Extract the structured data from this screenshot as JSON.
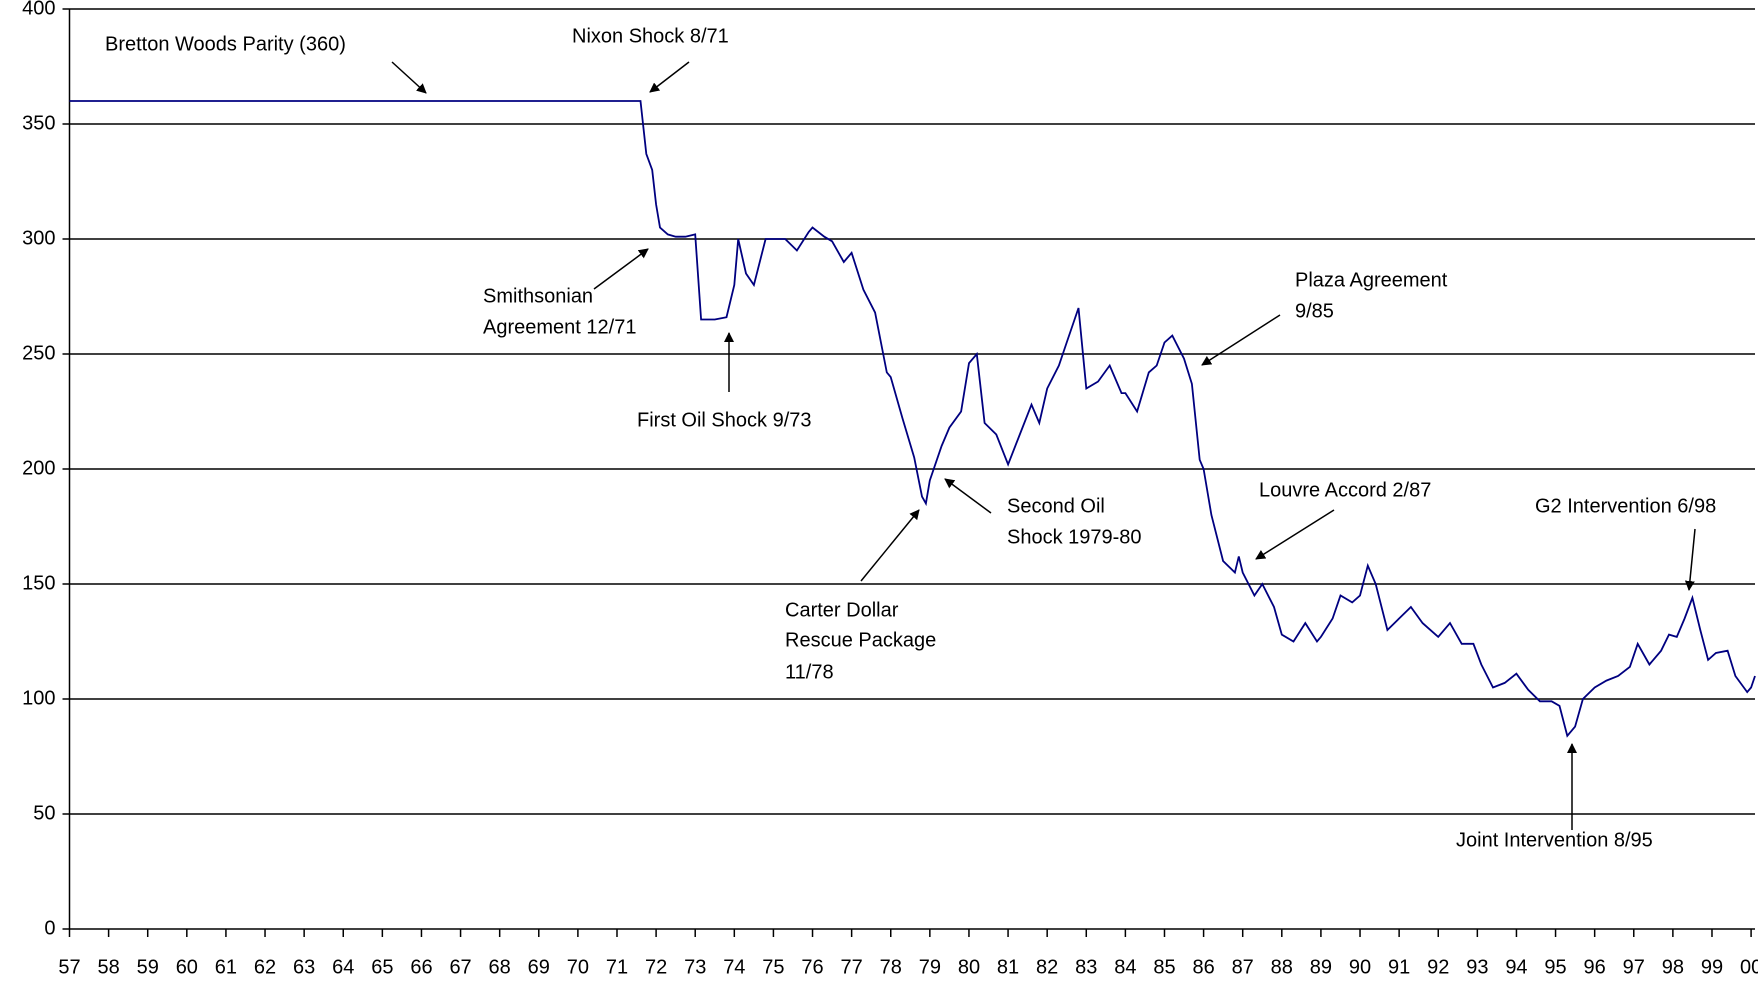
{
  "chart_data": {
    "type": "line",
    "series": [
      {
        "color": "#000080",
        "x": [
          1957,
          1971.6,
          1971.75,
          1971.9,
          1972.0,
          1972.1,
          1972.3,
          1972.5,
          1972.75,
          1973.0,
          1973.15,
          1973.5,
          1973.8,
          1974.0,
          1974.1,
          1974.3,
          1974.5,
          1974.8,
          1975.0,
          1975.3,
          1975.6,
          1975.9,
          1976.0,
          1976.3,
          1976.5,
          1976.8,
          1977.0,
          1977.3,
          1977.6,
          1977.9,
          1978.0,
          1978.3,
          1978.6,
          1978.8,
          1978.9,
          1979.0,
          1979.3,
          1979.5,
          1979.8,
          1980.0,
          1980.2,
          1980.4,
          1980.7,
          1981.0,
          1981.3,
          1981.6,
          1981.8,
          1982.0,
          1982.3,
          1982.5,
          1982.8,
          1983.0,
          1983.3,
          1983.6,
          1983.9,
          1984.0,
          1984.3,
          1984.6,
          1984.8,
          1985.0,
          1985.2,
          1985.5,
          1985.7,
          1985.9,
          1986.0,
          1986.2,
          1986.5,
          1986.8,
          1986.9,
          1987.0,
          1987.3,
          1987.5,
          1987.8,
          1988.0,
          1988.3,
          1988.6,
          1988.9,
          1989.0,
          1989.3,
          1989.5,
          1989.8,
          1990.0,
          1990.2,
          1990.4,
          1990.7,
          1991.0,
          1991.3,
          1991.6,
          1992.0,
          1992.3,
          1992.6,
          1992.9,
          1993.1,
          1993.4,
          1993.7,
          1994.0,
          1994.3,
          1994.6,
          1994.9,
          1995.1,
          1995.3,
          1995.5,
          1995.7,
          1996.0,
          1996.3,
          1996.6,
          1996.9,
          1997.1,
          1997.4,
          1997.7,
          1997.9,
          1998.1,
          1998.3,
          1998.5,
          1998.7,
          1998.9,
          1999.1,
          1999.4,
          1999.6,
          1999.9,
          2000.0,
          2000.1
        ],
        "values": [
          360,
          360,
          337,
          330,
          315,
          305,
          302,
          301,
          301,
          302,
          265,
          265,
          266,
          280,
          300,
          285,
          280,
          300,
          300,
          300,
          295,
          303,
          305,
          301,
          299,
          290,
          294,
          278,
          268,
          242,
          240,
          222,
          205,
          188,
          185,
          195,
          210,
          218,
          225,
          246,
          250,
          220,
          215,
          202,
          215,
          228,
          220,
          235,
          245,
          255,
          270,
          235,
          238,
          245,
          233,
          233,
          225,
          242,
          245,
          255,
          258,
          248,
          237,
          204,
          200,
          180,
          160,
          155,
          162,
          155,
          145,
          150,
          140,
          128,
          125,
          133,
          125,
          127,
          135,
          145,
          142,
          145,
          158,
          150,
          130,
          135,
          140,
          133,
          127,
          133,
          124,
          124,
          115,
          105,
          107,
          111,
          104,
          99,
          99,
          97,
          84,
          88,
          100,
          105,
          108,
          110,
          114,
          124,
          115,
          121,
          128,
          127,
          135,
          144,
          130,
          117,
          120,
          121,
          110,
          103,
          105,
          110
        ]
      }
    ],
    "xlim": [
      1957,
      2000.1
    ],
    "xticks": [
      {
        "value": 1957,
        "label": "57"
      },
      {
        "value": 1958,
        "label": "58"
      },
      {
        "value": 1959,
        "label": "59"
      },
      {
        "value": 1960,
        "label": "60"
      },
      {
        "value": 1961,
        "label": "61"
      },
      {
        "value": 1962,
        "label": "62"
      },
      {
        "value": 1963,
        "label": "63"
      },
      {
        "value": 1964,
        "label": "64"
      },
      {
        "value": 1965,
        "label": "65"
      },
      {
        "value": 1966,
        "label": "66"
      },
      {
        "value": 1967,
        "label": "67"
      },
      {
        "value": 1968,
        "label": "68"
      },
      {
        "value": 1969,
        "label": "69"
      },
      {
        "value": 1970,
        "label": "70"
      },
      {
        "value": 1971,
        "label": "71"
      },
      {
        "value": 1972,
        "label": "72"
      },
      {
        "value": 1973,
        "label": "73"
      },
      {
        "value": 1974,
        "label": "74"
      },
      {
        "value": 1975,
        "label": "75"
      },
      {
        "value": 1976,
        "label": "76"
      },
      {
        "value": 1977,
        "label": "77"
      },
      {
        "value": 1978,
        "label": "78"
      },
      {
        "value": 1979,
        "label": "79"
      },
      {
        "value": 1980,
        "label": "80"
      },
      {
        "value": 1981,
        "label": "81"
      },
      {
        "value": 1982,
        "label": "82"
      },
      {
        "value": 1983,
        "label": "83"
      },
      {
        "value": 1984,
        "label": "84"
      },
      {
        "value": 1985,
        "label": "85"
      },
      {
        "value": 1986,
        "label": "86"
      },
      {
        "value": 1987,
        "label": "87"
      },
      {
        "value": 1988,
        "label": "88"
      },
      {
        "value": 1989,
        "label": "89"
      },
      {
        "value": 1990,
        "label": "90"
      },
      {
        "value": 1991,
        "label": "91"
      },
      {
        "value": 1992,
        "label": "92"
      },
      {
        "value": 1993,
        "label": "93"
      },
      {
        "value": 1994,
        "label": "94"
      },
      {
        "value": 1995,
        "label": "95"
      },
      {
        "value": 1996,
        "label": "96"
      },
      {
        "value": 1997,
        "label": "97"
      },
      {
        "value": 1998,
        "label": "98"
      },
      {
        "value": 1999,
        "label": "99"
      },
      {
        "value": 2000,
        "label": "00"
      }
    ],
    "ylim": [
      0,
      400
    ],
    "yticks": [
      0,
      50,
      100,
      150,
      200,
      250,
      300,
      350,
      400
    ],
    "grid": true,
    "annotations": [
      {
        "lines": [
          "Bretton Woods Parity (360)"
        ]
      },
      {
        "lines": [
          "Nixon Shock 8/71"
        ]
      },
      {
        "lines": [
          "Smithsonian",
          "Agreement 12/71"
        ]
      },
      {
        "lines": [
          "First Oil Shock 9/73"
        ]
      },
      {
        "lines": [
          "Second Oil",
          "Shock 1979-80"
        ]
      },
      {
        "lines": [
          "Carter Dollar",
          "Rescue Package",
          "11/78"
        ]
      },
      {
        "lines": [
          "Plaza Agreement",
          "9/85"
        ]
      },
      {
        "lines": [
          "Louvre Accord 2/87"
        ]
      },
      {
        "lines": [
          "G2 Intervention 6/98"
        ]
      },
      {
        "lines": [
          "Joint Intervention 8/95"
        ]
      }
    ]
  }
}
